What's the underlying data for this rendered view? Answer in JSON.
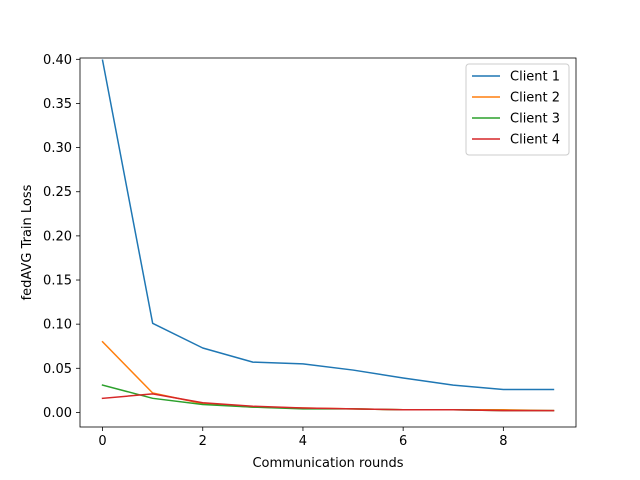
{
  "chart_data": {
    "type": "line",
    "title": "",
    "xlabel": "Communication rounds",
    "ylabel": "fedAVG Train Loss",
    "x": [
      0,
      1,
      2,
      3,
      4,
      5,
      6,
      7,
      8,
      9
    ],
    "xlim": [
      -0.45,
      9.45
    ],
    "ylim": [
      -0.0165,
      0.4015
    ],
    "xticks": [
      0,
      2,
      4,
      6,
      8
    ],
    "yticks": [
      0.0,
      0.05,
      0.1,
      0.15,
      0.2,
      0.25,
      0.3,
      0.35,
      0.4
    ],
    "xtick_labels": [
      "0",
      "2",
      "4",
      "6",
      "8"
    ],
    "ytick_labels": [
      "0.00",
      "0.05",
      "0.10",
      "0.15",
      "0.20",
      "0.25",
      "0.30",
      "0.35",
      "0.40"
    ],
    "grid": false,
    "legend_position": "top-right",
    "series": [
      {
        "name": "Client 1",
        "color": "#1f77b4",
        "values": [
          0.399,
          0.101,
          0.073,
          0.057,
          0.055,
          0.048,
          0.039,
          0.031,
          0.026,
          0.026
        ]
      },
      {
        "name": "Client 2",
        "color": "#ff7f0e",
        "values": [
          0.08,
          0.022,
          0.01,
          0.006,
          0.005,
          0.004,
          0.003,
          0.003,
          0.003,
          0.002
        ]
      },
      {
        "name": "Client 3",
        "color": "#2ca02c",
        "values": [
          0.031,
          0.016,
          0.009,
          0.006,
          0.004,
          0.004,
          0.003,
          0.003,
          0.002,
          0.002
        ]
      },
      {
        "name": "Client 4",
        "color": "#d62728",
        "values": [
          0.016,
          0.021,
          0.011,
          0.007,
          0.005,
          0.004,
          0.003,
          0.003,
          0.002,
          0.002
        ]
      }
    ]
  }
}
